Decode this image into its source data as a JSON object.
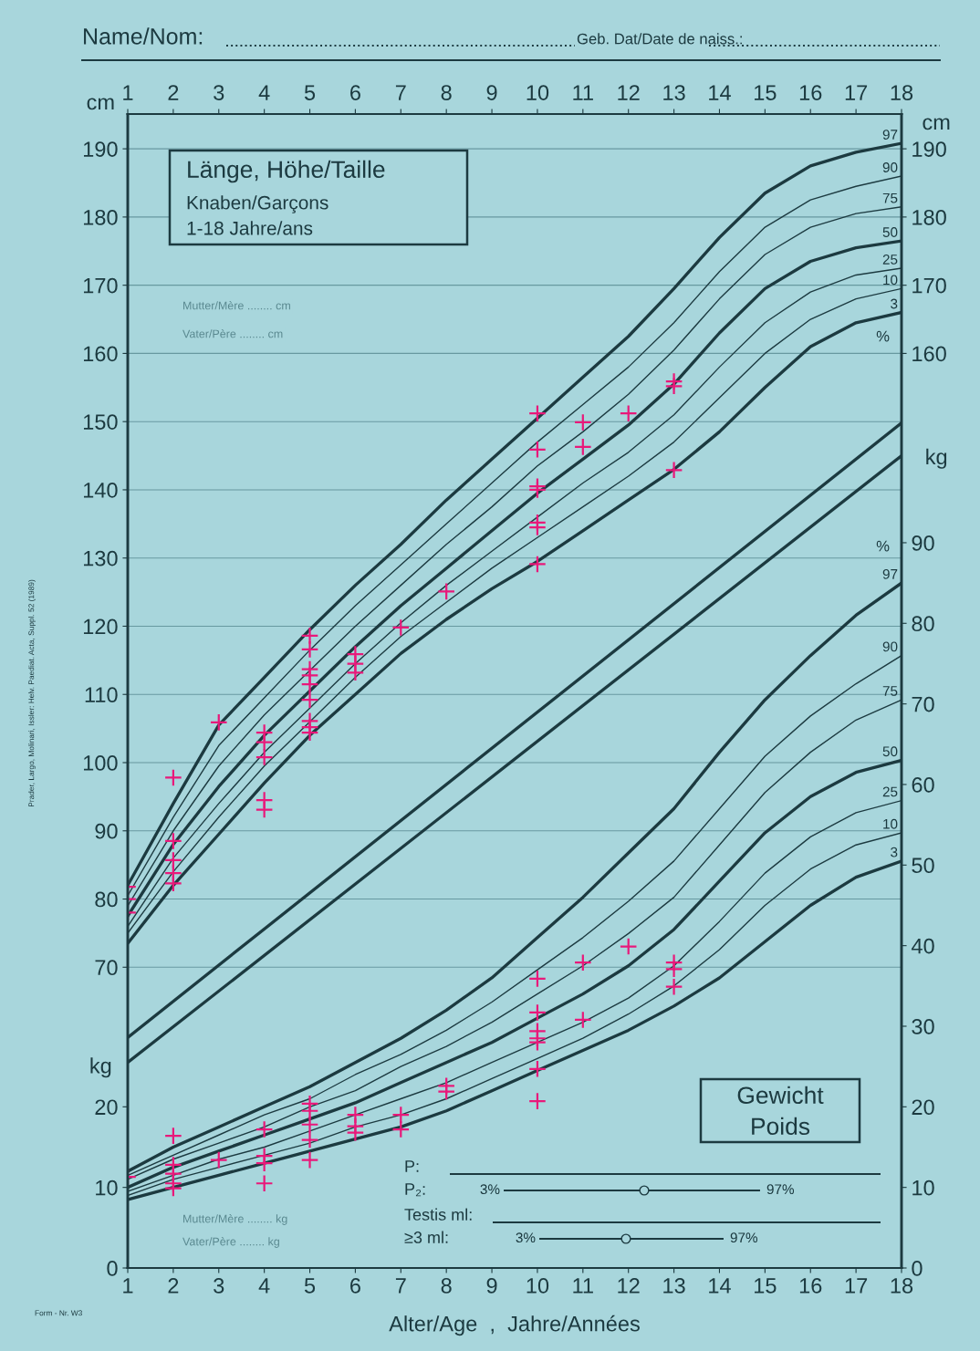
{
  "chart_data": [
    {
      "type": "line",
      "ylabel": "cm",
      "y2label": "cm",
      "xlim": [
        1,
        18
      ],
      "tick_labels": "y",
      "x2lim": [
        1,
        18
      ],
      "x2ticks": [
        1,
        2,
        3,
        4,
        5,
        6,
        7,
        8,
        9,
        10,
        11,
        12,
        13,
        14,
        15,
        16,
        17,
        18
      ],
      "ylim": [
        25.9,
        195.1
      ],
      "yticks": [
        70,
        80,
        90,
        100,
        110,
        120,
        130,
        140,
        150,
        160,
        170,
        180,
        190
      ],
      "y2lim": [
        25.9,
        195.1
      ],
      "y2ticks": [
        160,
        170,
        180,
        190
      ],
      "grid": true,
      "line_style": "solid",
      "x": [
        1,
        2,
        3,
        4,
        5,
        6,
        7,
        8,
        9,
        10,
        11,
        12,
        13,
        14,
        15,
        16,
        17,
        18
      ],
      "series": [
        {
          "name": "97",
          "color": "#1c3a40",
          "values": [
            82,
            94,
            105.5,
            112.5,
            119.5,
            126,
            132,
            138.5,
            144.5,
            150.5,
            156.5,
            162.5,
            169.5,
            177,
            183.5,
            187.5,
            189.5,
            190.8
          ]
        },
        {
          "name": "90",
          "color": "#1c3a40",
          "values": [
            80.5,
            92,
            102.5,
            109.5,
            116.5,
            123,
            129,
            135,
            141,
            147,
            152.5,
            158,
            164.5,
            172,
            178.5,
            182.5,
            184.5,
            186
          ]
        },
        {
          "name": "75",
          "color": "#1c3a40",
          "values": [
            79,
            90,
            99.5,
            107,
            113.5,
            120,
            126,
            132,
            137.5,
            143.5,
            148.5,
            154,
            160.5,
            168,
            174.5,
            178.5,
            180.5,
            181.5
          ]
        },
        {
          "name": "50",
          "color": "#1c3a40",
          "values": [
            77.5,
            88,
            96.5,
            104,
            110.5,
            117,
            123,
            128.5,
            134,
            139.5,
            144.5,
            149.5,
            155.5,
            163,
            169.5,
            173.5,
            175.5,
            176.5
          ]
        },
        {
          "name": "25",
          "color": "#1c3a40",
          "values": [
            76,
            86,
            94,
            101.5,
            108,
            114.5,
            120.5,
            126,
            131,
            136,
            141,
            145.5,
            151,
            158,
            164.5,
            169,
            171.5,
            172.5
          ]
        },
        {
          "name": "10",
          "color": "#1c3a40",
          "values": [
            75,
            84,
            92,
            99.5,
            106,
            112.5,
            118.5,
            123.5,
            128.5,
            133,
            137.5,
            142,
            147,
            153.5,
            160,
            165,
            168,
            169.5
          ]
        },
        {
          "name": "3",
          "color": "#1c3a40",
          "values": [
            73.5,
            82,
            89.5,
            97,
            104,
            110,
            116,
            121,
            125.5,
            129.5,
            134,
            138.5,
            143,
            148.5,
            155,
            161,
            164.5,
            166
          ]
        },
        {
          "color": "#1c3a40",
          "x": [
            1,
            18
          ],
          "values": [
            59.7,
            149.8
          ]
        },
        {
          "type": "scatter",
          "marker": "cross",
          "color": "#e8197a",
          "x": [
            1,
            1,
            1,
            2,
            2,
            2,
            2,
            2,
            3,
            4,
            4,
            4,
            4,
            4,
            5,
            5,
            5,
            5,
            5,
            5,
            5,
            5,
            5,
            6,
            6,
            6,
            7,
            8,
            10,
            10,
            10,
            10,
            10,
            10,
            10,
            11,
            11,
            12,
            13,
            13,
            13
          ],
          "values": [
            81.8,
            80.0,
            78.0,
            97.8,
            88.5,
            85.7,
            83.8,
            82.3,
            105.9,
            104.4,
            103.0,
            100.8,
            94.5,
            93.1,
            118.6,
            116.6,
            113.7,
            112.8,
            111.5,
            109.2,
            106.1,
            105.2,
            104.4,
            115.9,
            114.5,
            113.2,
            119.8,
            125.1,
            151.2,
            145.9,
            140.5,
            140.0,
            135.2,
            134.5,
            129.1,
            149.9,
            146.3,
            151.2,
            155.9,
            155.2,
            142.9
          ]
        }
      ],
      "annotations": [
        "Name/Nom:",
        "Geb. Dat/Date de naiss.:",
        "Länge, Höhe/Taille",
        "Knaben/Garçons",
        "1-18 Jahre/ans",
        "Mutter/Mère ........ cm",
        "Vater/Père ........ cm",
        "%",
        "Prader, Largo, Molinari, Issler: Helv. Paediat. Acta, Suppl. 52 (1989)"
      ]
    },
    {
      "type": "line",
      "xlabel": "Alter/Age  ,  Jahre/Années",
      "ylabel": "kg",
      "y2label": "kg",
      "xlim": [
        1,
        18
      ],
      "xticks": [
        1,
        2,
        3,
        4,
        5,
        6,
        7,
        8,
        9,
        10,
        11,
        12,
        13,
        14,
        15,
        16,
        17,
        18
      ],
      "ylim": [
        0,
        143.2
      ],
      "yticks": [
        0,
        10,
        20
      ],
      "y2lim": [
        0,
        143.2
      ],
      "y2ticks": [
        0,
        10,
        20,
        30,
        40,
        50,
        60,
        70,
        80,
        90
      ],
      "line_style": "solid",
      "x": [
        1,
        2,
        3,
        4,
        5,
        6,
        7,
        8,
        9,
        10,
        11,
        12,
        13,
        14,
        15,
        16,
        17,
        18
      ],
      "series": [
        {
          "name": "97",
          "color": "#1c3a40",
          "values": [
            12,
            15,
            17.5,
            20,
            22.5,
            25.5,
            28.5,
            32,
            36,
            41,
            46,
            51.5,
            57,
            64,
            70.5,
            76,
            81,
            85
          ]
        },
        {
          "name": "90",
          "color": "#1c3a40",
          "values": [
            11.5,
            14,
            16.5,
            19,
            21,
            24,
            26.5,
            29.5,
            33,
            37,
            41,
            45.5,
            50.5,
            57,
            63.5,
            68.5,
            72.5,
            76
          ]
        },
        {
          "name": "75",
          "color": "#1c3a40",
          "values": [
            11,
            13.5,
            15.5,
            17.5,
            20,
            22,
            25,
            27.5,
            30.5,
            34,
            37.5,
            41.5,
            46,
            52.5,
            59,
            64,
            68,
            70.5
          ]
        },
        {
          "name": "50",
          "color": "#1c3a40",
          "values": [
            10,
            12.5,
            14.5,
            16.5,
            18.5,
            20.5,
            23,
            25.5,
            28,
            31,
            34,
            37.5,
            42,
            48,
            54,
            58.5,
            61.5,
            63
          ]
        },
        {
          "name": "25",
          "color": "#1c3a40",
          "values": [
            9.5,
            11.5,
            13.5,
            15,
            17,
            19,
            21,
            23,
            25.5,
            28,
            30.5,
            33.5,
            37.5,
            43,
            49,
            53.5,
            56.5,
            58
          ]
        },
        {
          "name": "10",
          "color": "#1c3a40",
          "values": [
            9,
            11,
            12.5,
            14,
            15.5,
            17.5,
            19,
            21,
            23.5,
            26,
            28.5,
            31.5,
            35,
            39.5,
            45,
            49.5,
            52.5,
            54
          ]
        },
        {
          "name": "3",
          "color": "#1c3a40",
          "values": [
            8.5,
            10,
            11.5,
            13,
            14.5,
            16,
            17.5,
            19.5,
            22,
            24.5,
            27,
            29.5,
            32.5,
            36,
            40.5,
            45,
            48.5,
            50.5
          ]
        },
        {
          "color": "#1c3a40",
          "x": [
            1,
            18
          ],
          "values": [
            25.5,
            100.8
          ]
        },
        {
          "type": "scatter",
          "marker": "cross",
          "color": "#e8197a",
          "x": [
            1,
            2,
            2,
            2,
            2,
            2,
            3,
            4,
            4,
            4,
            4,
            5,
            5,
            5,
            5,
            5,
            6,
            6,
            6,
            7,
            7,
            8,
            8,
            10,
            10,
            10,
            10,
            10,
            10,
            10,
            11,
            11,
            12,
            13,
            13,
            13
          ],
          "values": [
            11.3,
            16.4,
            12.8,
            11.7,
            10.5,
            9.9,
            13.4,
            17.2,
            13.9,
            13.0,
            10.5,
            20.4,
            19.5,
            17.8,
            15.9,
            13.4,
            19.0,
            17.6,
            16.8,
            19.0,
            17.2,
            22.6,
            21.9,
            35.9,
            31.7,
            29.4,
            28.5,
            28.0,
            24.7,
            20.7,
            37.9,
            30.8,
            39.9,
            37.9,
            37.1,
            34.9
          ]
        }
      ],
      "annotations": [
        "Gewicht",
        "Poids",
        "P:",
        "P₂:",
        "3%",
        "97%",
        "Testis ml:",
        "≥3 ml:",
        "3%",
        "97%",
        "Mutter/Mère ........ kg",
        "Vater/Père ........ kg",
        "%",
        "Form - Nr. W3"
      ]
    }
  ]
}
